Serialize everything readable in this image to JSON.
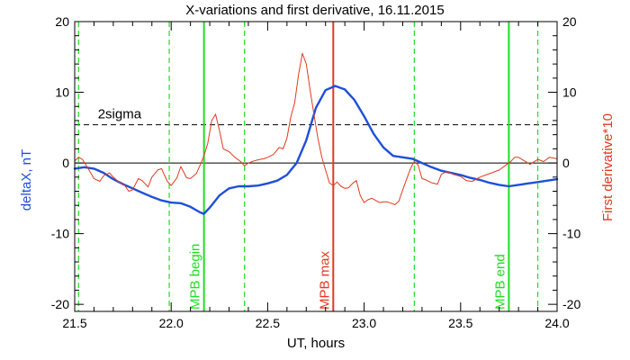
{
  "chart_data": {
    "type": "line",
    "title": "X-variations and first derivative, 16.11.2015",
    "xlabel": "UT, hours",
    "ylabel_left": "deltaX, nT",
    "ylabel_right": "First derivative*10",
    "xlim": [
      21.5,
      24.0
    ],
    "ylim": [
      -21,
      20
    ],
    "xticks": [
      21.5,
      22.0,
      22.5,
      23.0,
      23.5,
      24.0
    ],
    "xtick_labels": [
      "21.5",
      "22.0",
      "22.5",
      "23.0",
      "23.5",
      "24.0"
    ],
    "yticks": [
      -20,
      -10,
      0,
      10,
      20
    ],
    "ytick_labels": [
      "-20",
      "-10",
      "0",
      "10",
      "20"
    ],
    "colors": {
      "deltaX": "#1f4fd8",
      "derivative": "#e03a1e",
      "mpb": "#22dd22",
      "mpb_max": "#e03a1e",
      "threshold": "#000000",
      "zero": "#000000"
    },
    "series": [
      {
        "name": "deltaX, nT",
        "color": "#1f4fd8",
        "x": [
          21.5,
          21.55,
          21.6,
          21.65,
          21.7,
          21.75,
          21.8,
          21.85,
          21.9,
          21.95,
          22.0,
          22.05,
          22.1,
          22.15,
          22.17,
          22.2,
          22.25,
          22.3,
          22.35,
          22.4,
          22.45,
          22.5,
          22.55,
          22.6,
          22.65,
          22.7,
          22.75,
          22.8,
          22.85,
          22.9,
          22.95,
          23.0,
          23.05,
          23.1,
          23.15,
          23.2,
          23.25,
          23.3,
          23.35,
          23.4,
          23.45,
          23.5,
          23.55,
          23.6,
          23.65,
          23.7,
          23.75,
          23.8,
          23.85,
          23.9,
          23.95,
          24.0
        ],
        "y": [
          -0.8,
          -0.6,
          -0.8,
          -1.4,
          -2.3,
          -3.0,
          -3.6,
          -4.2,
          -4.8,
          -5.3,
          -5.6,
          -5.7,
          -6.2,
          -7.0,
          -7.2,
          -6.3,
          -4.6,
          -3.6,
          -3.3,
          -3.3,
          -3.2,
          -2.9,
          -2.5,
          -1.7,
          0.0,
          3.2,
          7.8,
          10.3,
          10.9,
          10.4,
          8.9,
          6.6,
          4.1,
          2.2,
          1.0,
          0.8,
          0.6,
          0.0,
          -0.6,
          -1.1,
          -1.4,
          -1.7,
          -2.1,
          -2.4,
          -2.8,
          -3.1,
          -3.3,
          -3.1,
          -2.9,
          -2.7,
          -2.5,
          -2.3
        ]
      },
      {
        "name": "First derivative*10",
        "color": "#e03a1e",
        "x": [
          21.5,
          21.52,
          21.54,
          21.57,
          21.6,
          21.63,
          21.65,
          21.68,
          21.7,
          21.73,
          21.76,
          21.78,
          21.8,
          21.83,
          21.85,
          21.88,
          21.9,
          21.93,
          21.95,
          21.98,
          22.0,
          22.03,
          22.05,
          22.08,
          22.1,
          22.13,
          22.15,
          22.17,
          22.19,
          22.21,
          22.23,
          22.25,
          22.27,
          22.3,
          22.33,
          22.36,
          22.38,
          22.4,
          22.43,
          22.46,
          22.48,
          22.5,
          22.53,
          22.56,
          22.58,
          22.6,
          22.62,
          22.64,
          22.66,
          22.68,
          22.7,
          22.72,
          22.74,
          22.76,
          22.78,
          22.8,
          22.82,
          22.84,
          22.86,
          22.88,
          22.9,
          22.92,
          22.94,
          22.96,
          22.98,
          23.0,
          23.02,
          23.04,
          23.06,
          23.08,
          23.1,
          23.12,
          23.14,
          23.16,
          23.18,
          23.2,
          23.22,
          23.24,
          23.26,
          23.28,
          23.3,
          23.32,
          23.35,
          23.38,
          23.4,
          23.43,
          23.46,
          23.5,
          23.53,
          23.56,
          23.6,
          23.63,
          23.66,
          23.7,
          23.73,
          23.76,
          23.78,
          23.8,
          23.83,
          23.86,
          23.9,
          23.93,
          23.96,
          24.0
        ],
        "y": [
          0.3,
          0.8,
          0.5,
          -0.8,
          -2.2,
          -2.6,
          -1.8,
          -1.4,
          -2.0,
          -2.7,
          -3.2,
          -4.0,
          -3.8,
          -2.2,
          -2.5,
          -3.4,
          -2.0,
          -1.0,
          -0.8,
          -2.6,
          -3.2,
          -2.1,
          -0.5,
          -2.1,
          -2.2,
          -1.5,
          -0.3,
          1.0,
          2.8,
          6.0,
          6.9,
          4.6,
          2.0,
          1.6,
          0.8,
          0.2,
          -0.4,
          0.0,
          0.3,
          0.5,
          0.6,
          0.8,
          1.2,
          2.2,
          2.0,
          3.5,
          6.5,
          8.5,
          12.5,
          15.5,
          14.0,
          10.3,
          6.8,
          3.6,
          0.9,
          -1.0,
          -2.8,
          -3.2,
          -2.7,
          -3.3,
          -3.6,
          -3.5,
          -2.9,
          -2.5,
          -4.6,
          -5.6,
          -5.2,
          -5.0,
          -5.3,
          -5.6,
          -5.5,
          -5.5,
          -5.7,
          -5.9,
          -5.4,
          -3.8,
          -2.3,
          -0.8,
          0.2,
          -0.3,
          -2.2,
          -2.4,
          -2.8,
          -3.0,
          -1.6,
          -1.2,
          -1.6,
          -1.9,
          -2.5,
          -2.6,
          -2.0,
          -1.7,
          -1.4,
          -1.0,
          -0.4,
          0.2,
          0.8,
          0.8,
          0.3,
          -0.2,
          0.5,
          0.2,
          0.8,
          0.6
        ]
      }
    ],
    "horizontal_lines": [
      {
        "y": 0,
        "style": "solid",
        "color": "#000000"
      },
      {
        "y": 5.4,
        "style": "dashed",
        "color": "#000000",
        "label": "2sigma",
        "label_x": 21.62
      }
    ],
    "vertical_lines": [
      {
        "x": 21.52,
        "style": "dashed",
        "color": "#22dd22"
      },
      {
        "x": 21.99,
        "style": "dashed",
        "color": "#22dd22"
      },
      {
        "x": 22.17,
        "style": "solid",
        "color": "#22dd22",
        "label": "MPB begin"
      },
      {
        "x": 22.38,
        "style": "dashed",
        "color": "#22dd22"
      },
      {
        "x": 22.84,
        "style": "solid",
        "color": "#e03a1e",
        "label": "MPB max"
      },
      {
        "x": 23.26,
        "style": "dashed",
        "color": "#22dd22"
      },
      {
        "x": 23.75,
        "style": "solid",
        "color": "#22dd22",
        "label": "MPB end"
      },
      {
        "x": 23.9,
        "style": "dashed",
        "color": "#22dd22"
      }
    ],
    "grid": false,
    "legend": "none"
  }
}
